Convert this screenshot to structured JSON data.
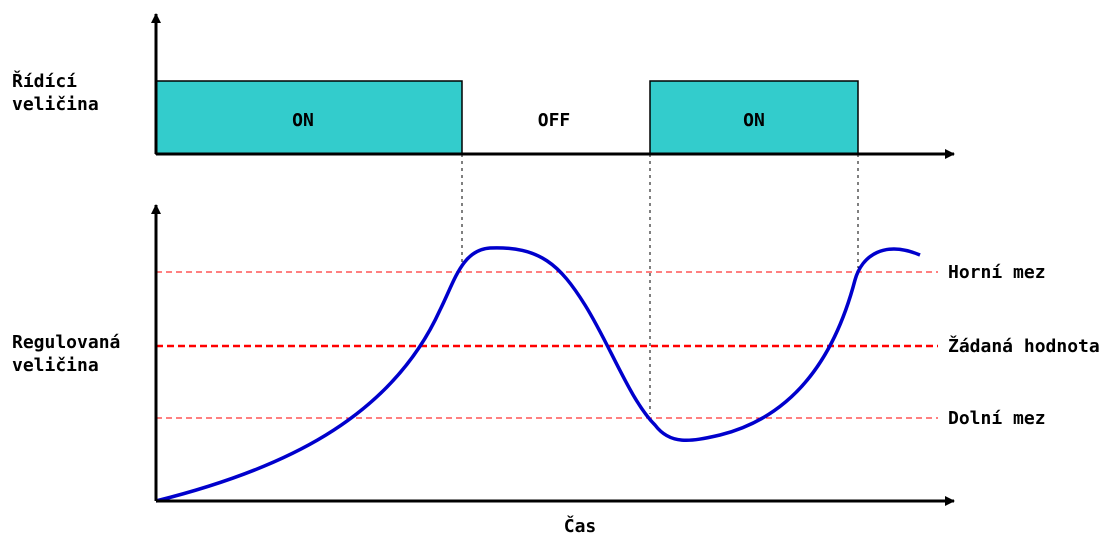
{
  "top_axis": {
    "label_line1": "Řídící",
    "label_line2": "veličina"
  },
  "bottom_axis": {
    "label_line1": "Regulovaná",
    "label_line2": "veličina",
    "x_label": "Čas"
  },
  "states": [
    "ON",
    "OFF",
    "ON"
  ],
  "thresholds": {
    "upper": "Horní mez",
    "setpoint": "Žádaná hodnota",
    "lower": "Dolní mez"
  },
  "colors": {
    "on_fill": "#33cccc",
    "curve": "#0000cc",
    "threshold": "#ff0000",
    "axis": "#000000"
  }
}
